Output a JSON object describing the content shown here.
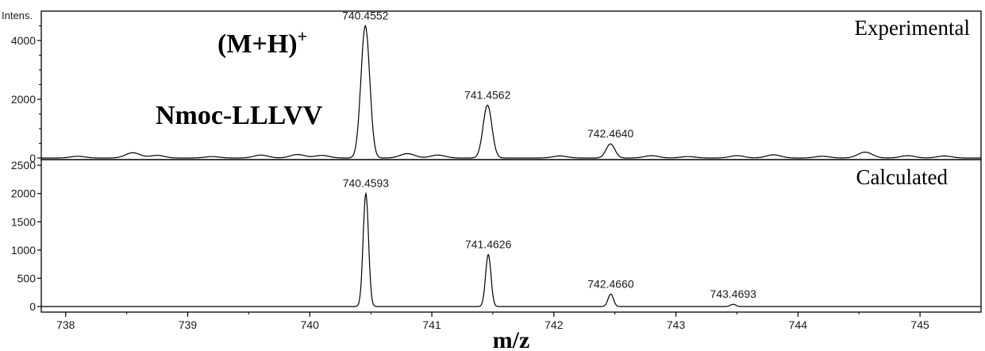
{
  "chart_data": [
    {
      "type": "line",
      "panel": "top",
      "series_label": "Experimental",
      "yaxis_title": "Intens.",
      "xlim": [
        737.8,
        745.5
      ],
      "ylim": [
        0,
        5000
      ],
      "yticks": [
        0,
        2000,
        4000
      ],
      "ytick_labels": [
        "0",
        "2000",
        "4000"
      ],
      "annotations": [
        {
          "text": "(M+H)",
          "superscript": "+"
        },
        {
          "text": "Nmoc-LLLVV"
        }
      ],
      "peaks": [
        {
          "mz": 740.4552,
          "intensity": 4500,
          "label": "740.4552"
        },
        {
          "mz": 741.4562,
          "intensity": 1800,
          "label": "741.4562"
        },
        {
          "mz": 742.464,
          "intensity": 480,
          "label": "742.4640"
        }
      ],
      "noise": [
        {
          "mz": 738.1,
          "intensity": 60
        },
        {
          "mz": 738.55,
          "intensity": 180
        },
        {
          "mz": 738.75,
          "intensity": 90
        },
        {
          "mz": 739.2,
          "intensity": 50
        },
        {
          "mz": 739.6,
          "intensity": 100
        },
        {
          "mz": 739.9,
          "intensity": 120
        },
        {
          "mz": 740.1,
          "intensity": 90
        },
        {
          "mz": 740.8,
          "intensity": 150
        },
        {
          "mz": 741.05,
          "intensity": 100
        },
        {
          "mz": 742.05,
          "intensity": 70
        },
        {
          "mz": 742.8,
          "intensity": 80
        },
        {
          "mz": 743.1,
          "intensity": 50
        },
        {
          "mz": 743.5,
          "intensity": 80
        },
        {
          "mz": 743.8,
          "intensity": 110
        },
        {
          "mz": 744.2,
          "intensity": 60
        },
        {
          "mz": 744.55,
          "intensity": 200
        },
        {
          "mz": 744.9,
          "intensity": 80
        },
        {
          "mz": 745.2,
          "intensity": 70
        }
      ]
    },
    {
      "type": "line",
      "panel": "bottom",
      "series_label": "Calculated",
      "xlabel": "m/z",
      "xlim": [
        737.8,
        745.5
      ],
      "ylim": [
        0,
        2600
      ],
      "yticks": [
        0,
        500,
        1000,
        1500,
        2000,
        2500
      ],
      "ytick_labels": [
        "0",
        "500",
        "1000",
        "1500",
        "2000",
        "2500"
      ],
      "xticks": [
        738,
        739,
        740,
        741,
        742,
        743,
        744,
        745
      ],
      "xtick_labels": [
        "738",
        "739",
        "740",
        "741",
        "742",
        "743",
        "744",
        "745"
      ],
      "peaks": [
        {
          "mz": 740.4593,
          "intensity": 2000,
          "label": "740.4593"
        },
        {
          "mz": 741.4626,
          "intensity": 920,
          "label": "741.4626"
        },
        {
          "mz": 742.466,
          "intensity": 220,
          "label": "742.4660"
        },
        {
          "mz": 743.4693,
          "intensity": 40,
          "label": "743.4693"
        }
      ]
    }
  ]
}
